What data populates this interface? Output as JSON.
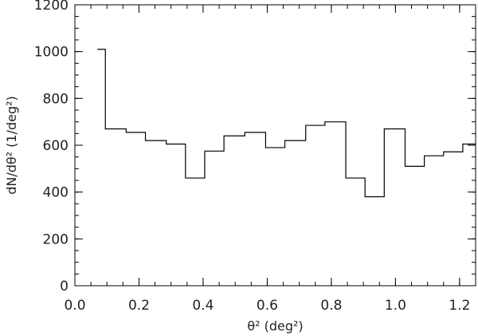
{
  "chart_data": {
    "type": "histogram-step",
    "xlabel": "θ² (deg²)",
    "ylabel": "dN/dθ² (1/deg²)",
    "xlim": [
      0.0,
      1.25
    ],
    "ylim": [
      0,
      1200
    ],
    "x_ticks": [
      0.0,
      0.2,
      0.4,
      0.6,
      0.8,
      1.0,
      1.2
    ],
    "x_tick_labels": [
      "0.0",
      "0.2",
      "0.4",
      "0.6",
      "0.8",
      "1.0",
      "1.2"
    ],
    "x_minor_step": 0.05,
    "y_ticks": [
      0,
      200,
      400,
      600,
      800,
      1000,
      1200
    ],
    "y_tick_labels": [
      "0",
      "200",
      "400",
      "600",
      "800",
      "1000",
      "1200"
    ],
    "y_minor_step": 50,
    "bin_edges": [
      0.07,
      0.095,
      0.16,
      0.22,
      0.285,
      0.345,
      0.405,
      0.465,
      0.53,
      0.595,
      0.655,
      0.72,
      0.78,
      0.845,
      0.905,
      0.965,
      1.03,
      1.09,
      1.15,
      1.21,
      1.25
    ],
    "values": [
      1010,
      670,
      655,
      620,
      605,
      460,
      575,
      640,
      655,
      590,
      620,
      685,
      700,
      460,
      380,
      670,
      510,
      555,
      572,
      605
    ],
    "grid": false,
    "legend": "none"
  }
}
